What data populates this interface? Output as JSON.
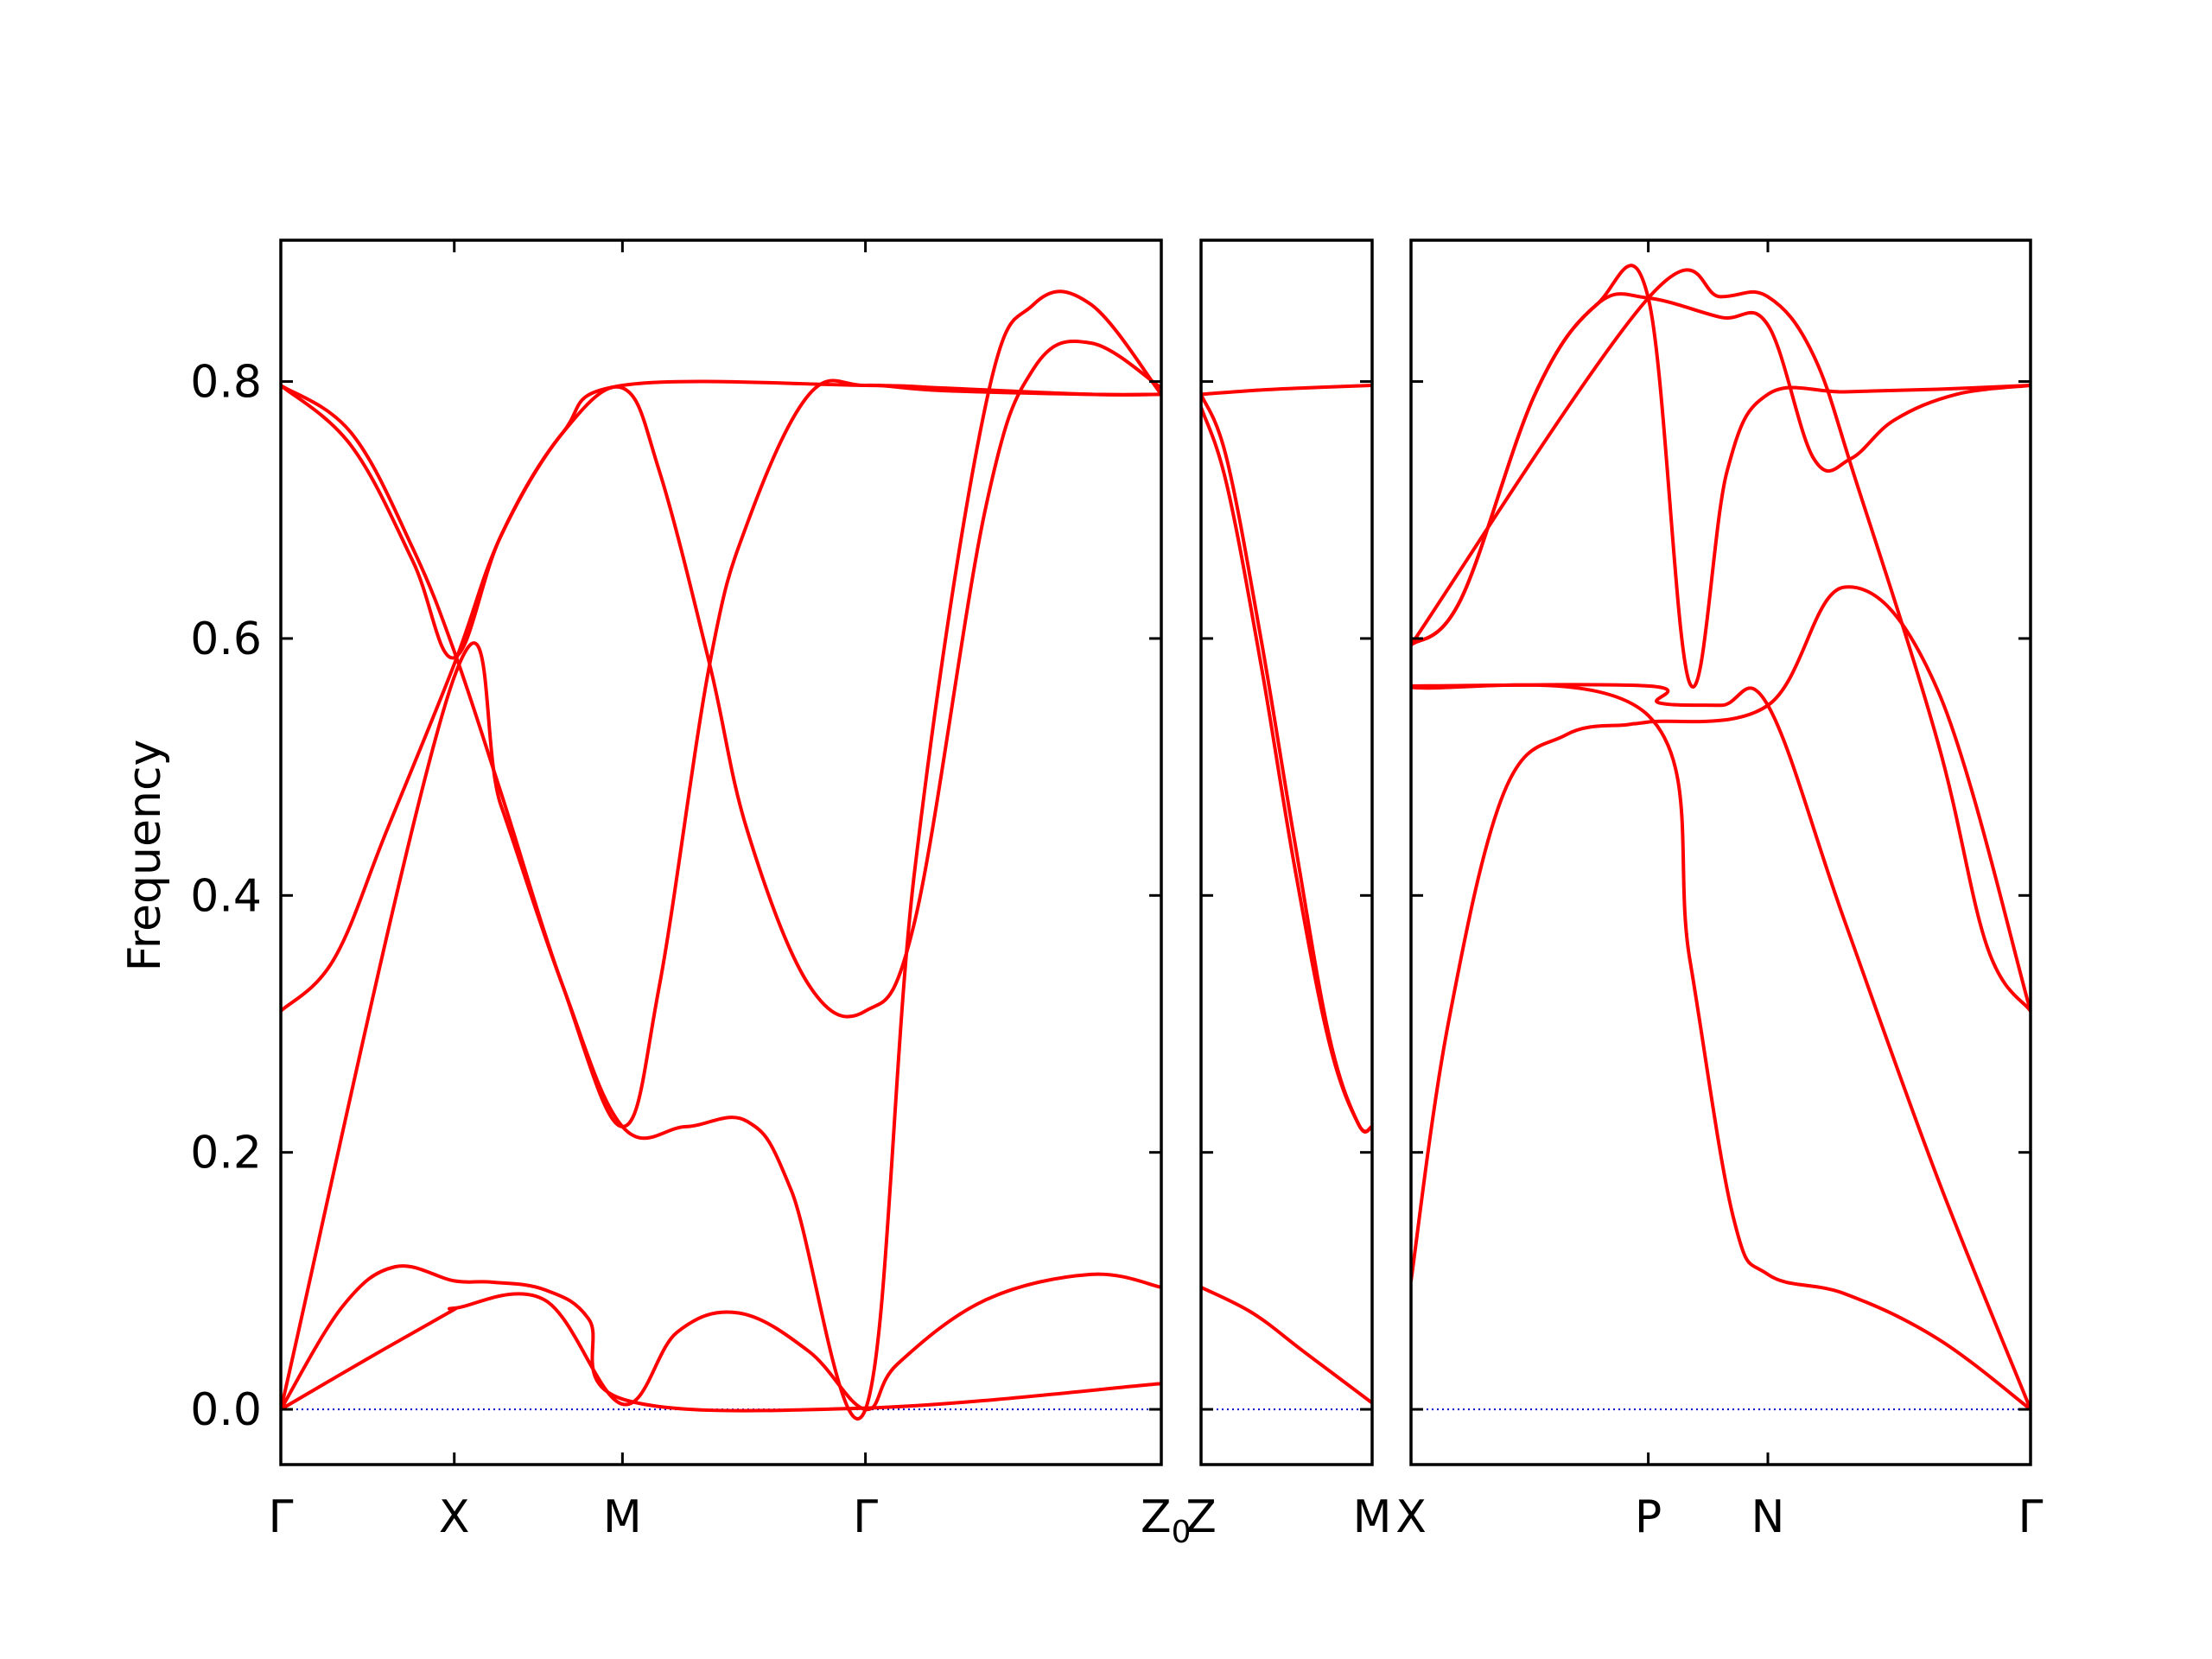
{
  "chart_data": {
    "type": "line",
    "ylabel": "Frequency",
    "ylim": [
      -0.043,
      0.91
    ],
    "yticks": [
      0.0,
      0.2,
      0.4,
      0.6,
      0.8
    ],
    "ytick_labels": [
      "0.0",
      "0.2",
      "0.4",
      "0.6",
      "0.8"
    ],
    "grid": false,
    "legend": "none",
    "colors": {
      "bands": "#ff0000",
      "zero_line": "#0000cc",
      "axes": "#000000"
    },
    "panels": [
      {
        "segments": [
          "Γ-X",
          "X-M",
          "M-Γ",
          "Γ-Z"
        ],
        "xlim": [
          0,
          1.0
        ],
        "xticks": [
          0,
          0.197,
          0.388,
          0.664,
          1.0
        ],
        "xtick_labels": [
          "Γ",
          "X",
          "M",
          "Γ",
          ""
        ],
        "bands": [
          {
            "x": [
              0,
              0.1,
              0.19,
              0.197,
              0.2,
              0.3,
              0.388,
              0.45,
              0.52,
              0.6,
              0.664,
              0.7,
              0.8,
              0.92,
              1.0
            ],
            "y": [
              0.0,
              0.04,
              0.075,
              0.078,
              0.079,
              0.085,
              0.004,
              0.06,
              0.075,
              0.045,
              0.0,
              0.035,
              0.085,
              0.105,
              0.095
            ]
          },
          {
            "x": [
              0,
              0.07,
              0.13,
              0.197,
              0.24,
              0.3,
              0.35,
              0.388,
              0.664,
              1.0
            ],
            "y": [
              0.0,
              0.08,
              0.111,
              0.1,
              0.099,
              0.093,
              0.07,
              0.008,
              0.001,
              0.02
            ]
          },
          {
            "x": [
              0,
              0.197,
              0.25,
              0.32,
              0.388,
              0.46,
              0.53,
              0.58,
              0.664,
              0.72,
              0.8,
              0.855,
              0.92,
              1.0
            ],
            "y": [
              0.0,
              0.57,
              0.47,
              0.33,
              0.22,
              0.22,
              0.224,
              0.17,
              0.0,
              0.42,
              0.78,
              0.86,
              0.86,
              0.79
            ]
          },
          {
            "x": [
              0,
              0.06,
              0.12,
              0.197,
              0.25,
              0.32,
              0.388,
              0.43,
              0.487,
              0.53,
              0.6,
              0.664,
              0.72,
              0.8,
              0.855,
              0.92,
              1.0
            ],
            "y": [
              0.31,
              0.35,
              0.45,
              0.58,
              0.68,
              0.76,
              0.795,
              0.73,
              0.58,
              0.45,
              0.33,
              0.31,
              0.38,
              0.7,
              0.81,
              0.83,
              0.795
            ]
          },
          {
            "x": [
              0,
              0.08,
              0.15,
              0.197,
              0.25,
              0.32,
              0.388,
              0.43,
              0.487,
              0.53,
              0.6,
              0.664,
              0.75,
              0.92,
              1.0
            ],
            "y": [
              0.797,
              0.76,
              0.67,
              0.59,
              0.48,
              0.33,
              0.22,
              0.33,
              0.58,
              0.69,
              0.79,
              0.797,
              0.793,
              0.79,
              0.79
            ]
          },
          {
            "x": [
              0,
              0.08,
              0.15,
              0.197,
              0.25,
              0.32,
              0.388,
              0.664,
              0.75,
              0.92,
              1.0
            ],
            "y": [
              0.797,
              0.75,
              0.66,
              0.585,
              0.68,
              0.76,
              0.797,
              0.797,
              0.795,
              0.79,
              0.79
            ]
          }
        ]
      },
      {
        "segments": [
          "Z₀-M"
        ],
        "xlim": [
          0,
          1.0
        ],
        "xticks": [
          0,
          1.0
        ],
        "xtick_labels": [
          "Z",
          "M"
        ],
        "subscript_label": "Z₀",
        "bands": [
          {
            "x": [
              0,
              0.3,
              0.6,
              1.0
            ],
            "y": [
              0.095,
              0.075,
              0.045,
              0.005
            ]
          },
          {
            "x": [
              0,
              0.15,
              0.35,
              0.55,
              0.75,
              0.92,
              1.0
            ],
            "y": [
              0.79,
              0.74,
              0.6,
              0.44,
              0.29,
              0.222,
              0.22
            ]
          },
          {
            "x": [
              0,
              0.15,
              0.35,
              0.55,
              0.75,
              0.92,
              1.0
            ],
            "y": [
              0.78,
              0.72,
              0.58,
              0.42,
              0.285,
              0.222,
              0.22
            ]
          },
          {
            "x": [
              0,
              0.3,
              0.6,
              1.0
            ],
            "y": [
              0.79,
              0.793,
              0.795,
              0.797
            ]
          }
        ]
      },
      {
        "segments": [
          "X-P",
          "P-N",
          "N-Γ"
        ],
        "xlim": [
          0,
          1.0
        ],
        "xticks": [
          0,
          0.383,
          0.576,
          1.0
        ],
        "xtick_labels": [
          "X",
          "P",
          "N",
          "Γ"
        ],
        "bands": [
          {
            "x": [
              0,
              0.06,
              0.15,
              0.25,
              0.35,
              0.383,
              0.576,
              0.7,
              0.85,
              1.0
            ],
            "y": [
              0.1,
              0.3,
              0.48,
              0.525,
              0.533,
              0.535,
              0.548,
              0.64,
              0.56,
              0.31
            ]
          },
          {
            "x": [
              0,
              0.383,
              0.45,
              0.52,
              0.576,
              0.7,
              0.85,
              1.0
            ],
            "y": [
              0.562,
              0.54,
              0.35,
              0.15,
              0.105,
              0.09,
              0.055,
              0.0
            ]
          },
          {
            "x": [
              0,
              0.383,
              0.4,
              0.5,
              0.576,
              0.7,
              0.85,
              1.0
            ],
            "y": [
              0.563,
              0.563,
              0.55,
              0.548,
              0.548,
              0.38,
              0.18,
              0.0
            ]
          },
          {
            "x": [
              0,
              0.08,
              0.2,
              0.3,
              0.383,
              0.45,
              0.51,
              0.576,
              0.7,
              0.85,
              1.0
            ],
            "y": [
              0.595,
              0.63,
              0.79,
              0.86,
              0.865,
              0.565,
              0.73,
              0.79,
              0.792,
              0.794,
              0.797
            ]
          },
          {
            "x": [
              0,
              0.08,
              0.2,
              0.3,
              0.383,
              0.5,
              0.576,
              0.65,
              0.71,
              0.78,
              0.88,
              1.0
            ],
            "y": [
              0.595,
              0.63,
              0.79,
              0.86,
              0.865,
              0.85,
              0.844,
              0.74,
              0.74,
              0.77,
              0.79,
              0.797
            ]
          },
          {
            "x": [
              0,
              0.383,
              0.5,
              0.576,
              0.65,
              0.72,
              0.85,
              0.93,
              1.0
            ],
            "y": [
              0.595,
              0.865,
              0.866,
              0.866,
              0.82,
              0.72,
              0.52,
              0.36,
              0.31
            ]
          }
        ]
      }
    ]
  }
}
